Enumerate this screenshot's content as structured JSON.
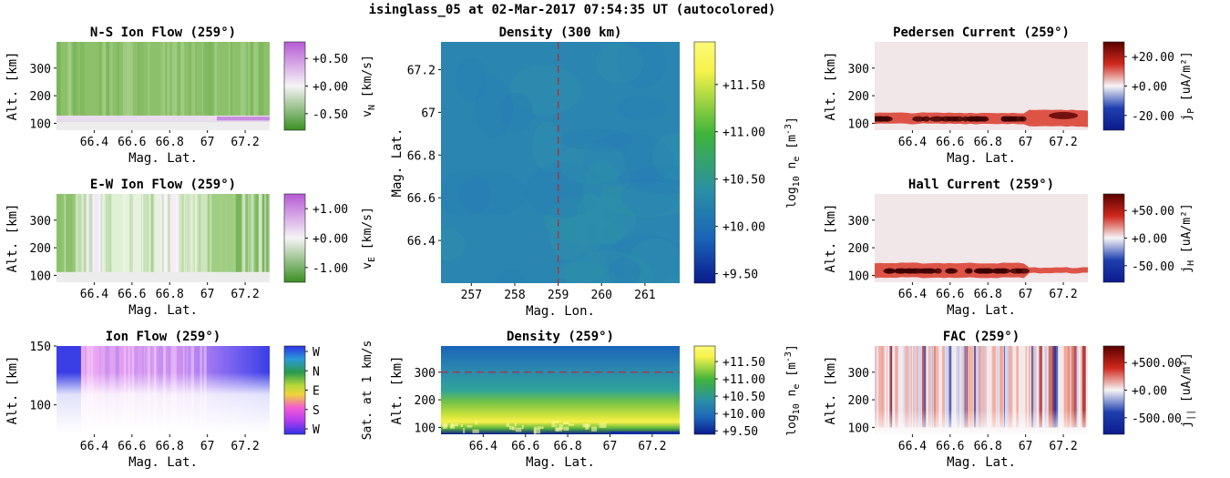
{
  "page_title": "isinglass_05 at 02-Mar-2017 07:54:35 UT (autocolored)",
  "colors": {
    "green_dark": "#3a8f24",
    "green_mid": "#8cc06a",
    "white": "#f6f4f6",
    "purple": "#b65ad6",
    "dark_red": "#5a0000",
    "red": "#d0281c",
    "blue": "#1f3fb0",
    "navy": "#0a1a8c",
    "teal": "#2a8fa6",
    "yellow": "#f7f24a",
    "dashed_line": "#c0242c"
  },
  "chart_data": [
    {
      "id": "ns_flow",
      "type": "heatmap",
      "title": "N-S Ion Flow (259°)",
      "xlabel": "Mag. Lat.",
      "ylabel": "Alt. [km]",
      "xlim": [
        66.2,
        67.33
      ],
      "ylim": [
        75,
        395
      ],
      "xticks": [
        66.4,
        66.6,
        66.8,
        67,
        67.2
      ],
      "xtick_labels": [
        "66.4",
        "66.6",
        "66.8",
        "67",
        "67.2"
      ],
      "yticks": [
        100,
        200,
        300
      ],
      "ytick_labels": [
        "100",
        "200",
        "300"
      ],
      "colorbar": {
        "label": "v_N [km/s]",
        "label_main": "v",
        "label_sub": "N",
        "label_rest": " [km/s]",
        "ticks": [
          0.5,
          0.0,
          -0.5
        ],
        "tick_labels": [
          "+0.50",
          "+0.00",
          "-0.50"
        ],
        "range": [
          -0.8,
          0.8
        ],
        "colormap": "PRGn"
      },
      "field_description": "mostly light green (~-0.3 km/s) above ~130 km, white/purple band near 110-125 km"
    },
    {
      "id": "ew_flow",
      "type": "heatmap",
      "title": "E-W Ion Flow (259°)",
      "xlabel": "Mag. Lat.",
      "ylabel": "Alt. [km]",
      "xlim": [
        66.2,
        67.33
      ],
      "ylim": [
        75,
        395
      ],
      "xticks": [
        66.4,
        66.6,
        66.8,
        67,
        67.2
      ],
      "xtick_labels": [
        "66.4",
        "66.6",
        "66.8",
        "67",
        "67.2"
      ],
      "yticks": [
        100,
        200,
        300
      ],
      "ytick_labels": [
        "100",
        "200",
        "300"
      ],
      "colorbar": {
        "label": "v_E [km/s]",
        "label_main": "v",
        "label_sub": "E",
        "label_rest": " [km/s]",
        "ticks": [
          1.0,
          0.0,
          -1.0
        ],
        "tick_labels": [
          "+1.00",
          "+0.00",
          "-1.00"
        ],
        "range": [
          -1.5,
          1.5
        ],
        "colormap": "PRGn"
      }
    },
    {
      "id": "ion_flow",
      "type": "heatmap",
      "title": "Ion Flow (259°)",
      "xlabel": "Mag. Lat.",
      "ylabel": "Alt. [km]",
      "xlim": [
        66.2,
        67.33
      ],
      "ylim": [
        75,
        150
      ],
      "xticks": [
        66.4,
        66.6,
        66.8,
        67,
        67.2
      ],
      "xtick_labels": [
        "66.4",
        "66.6",
        "66.8",
        "67",
        "67.2"
      ],
      "yticks": [
        100,
        150
      ],
      "ytick_labels": [
        "100",
        "150"
      ],
      "colorbar": {
        "label": "Sat. at 1 km/s",
        "ticks": [
          "W",
          "N",
          "E",
          "S",
          "W"
        ],
        "tick_labels": [
          "W",
          "N",
          "E",
          "S",
          "W"
        ],
        "colormap": "direction-cyclic"
      }
    },
    {
      "id": "density_300",
      "type": "heatmap",
      "title": "Density (300 km)",
      "xlabel": "Mag. Lon.",
      "ylabel": "Mag. Lat.",
      "xlim": [
        256.3,
        261.8
      ],
      "ylim": [
        66.2,
        67.33
      ],
      "xticks": [
        257,
        258,
        259,
        260,
        261
      ],
      "xtick_labels": [
        "257",
        "258",
        "259",
        "260",
        "261"
      ],
      "yticks": [
        66.4,
        66.6,
        66.8,
        67,
        67.2
      ],
      "ytick_labels": [
        "66.4",
        "66.6",
        "66.8",
        "67",
        "67.2"
      ],
      "reference_line": {
        "orientation": "vertical",
        "value": 259
      },
      "colorbar": {
        "label": "log10 n_e [m^-3]",
        "ticks": [
          11.5,
          11.0,
          10.5,
          10.0,
          9.5
        ],
        "tick_labels": [
          "+11.50",
          "+11.00",
          "+10.50",
          "+10.00",
          "+9.50"
        ],
        "range": [
          9.4,
          11.95
        ],
        "colormap": "viridis-like"
      },
      "field_value": 10.2
    },
    {
      "id": "density_259",
      "type": "heatmap",
      "title": "Density (259°)",
      "xlabel": "Mag. Lat.",
      "ylabel": "Alt. [km]",
      "xlim": [
        66.2,
        67.33
      ],
      "ylim": [
        75,
        395
      ],
      "xticks": [
        66.4,
        66.6,
        66.8,
        67,
        67.2
      ],
      "xtick_labels": [
        "66.4",
        "66.6",
        "66.8",
        "67",
        "67.2"
      ],
      "yticks": [
        100,
        200,
        300
      ],
      "ytick_labels": [
        "100",
        "200",
        "300"
      ],
      "reference_line": {
        "orientation": "horizontal",
        "value": 300
      },
      "colorbar": {
        "label": "log10 n_e [m^-3]",
        "ticks": [
          11.5,
          11.0,
          10.5,
          10.0,
          9.5
        ],
        "tick_labels": [
          "+11.50",
          "+11.00",
          "+10.50",
          "+10.00",
          "+9.50"
        ],
        "range": [
          9.4,
          11.95
        ],
        "colormap": "viridis-like"
      }
    },
    {
      "id": "pedersen",
      "type": "heatmap",
      "title": "Pedersen Current (259°)",
      "xlabel": "Mag. Lat.",
      "ylabel": "Alt. [km]",
      "xlim": [
        66.2,
        67.33
      ],
      "ylim": [
        75,
        395
      ],
      "xticks": [
        66.4,
        66.6,
        66.8,
        67,
        67.2
      ],
      "xtick_labels": [
        "66.4",
        "66.6",
        "66.8",
        "67",
        "67.2"
      ],
      "yticks": [
        100,
        200,
        300
      ],
      "ytick_labels": [
        "100",
        "200",
        "300"
      ],
      "colorbar": {
        "label": "j_P [uA/m^2]",
        "label_main": "j",
        "label_sub": "P",
        "label_rest": " [uA/m²]",
        "ticks": [
          20,
          0,
          -20
        ],
        "tick_labels": [
          "+20.00",
          "+0.00",
          "-20.00"
        ],
        "range": [
          -30,
          30
        ],
        "colormap": "RdBu_r"
      }
    },
    {
      "id": "hall",
      "type": "heatmap",
      "title": "Hall Current (259°)",
      "xlabel": "Mag. Lat.",
      "ylabel": "Alt. [km]",
      "xlim": [
        66.2,
        67.33
      ],
      "ylim": [
        75,
        395
      ],
      "xticks": [
        66.4,
        66.6,
        66.8,
        67,
        67.2
      ],
      "xtick_labels": [
        "66.4",
        "66.6",
        "66.8",
        "67",
        "67.2"
      ],
      "yticks": [
        100,
        200,
        300
      ],
      "ytick_labels": [
        "100",
        "200",
        "300"
      ],
      "colorbar": {
        "label": "j_H [uA/m^2]",
        "label_main": "j",
        "label_sub": "H",
        "label_rest": " [uA/m²]",
        "ticks": [
          50,
          0,
          -50
        ],
        "tick_labels": [
          "+50.00",
          "+0.00",
          "-50.00"
        ],
        "range": [
          -80,
          80
        ],
        "colormap": "RdBu_r"
      }
    },
    {
      "id": "fac",
      "type": "heatmap",
      "title": "FAC (259°)",
      "xlabel": "Mag. Lat.",
      "ylabel": "Alt. [km]",
      "xlim": [
        66.2,
        67.33
      ],
      "ylim": [
        75,
        395
      ],
      "xticks": [
        66.4,
        66.6,
        66.8,
        67,
        67.2
      ],
      "xtick_labels": [
        "66.4",
        "66.6",
        "66.8",
        "67",
        "67.2"
      ],
      "yticks": [
        100,
        200,
        300
      ],
      "ytick_labels": [
        "100",
        "200",
        "300"
      ],
      "colorbar": {
        "label": "j_|| [uA/m^2]",
        "label_main": "j",
        "label_sub": "||",
        "label_rest": " [uA/m²]",
        "ticks": [
          500,
          0,
          -500
        ],
        "tick_labels": [
          "+500.00",
          "+0.00",
          "-500.00"
        ],
        "range": [
          -800,
          800
        ],
        "colormap": "RdBu_r"
      }
    }
  ]
}
